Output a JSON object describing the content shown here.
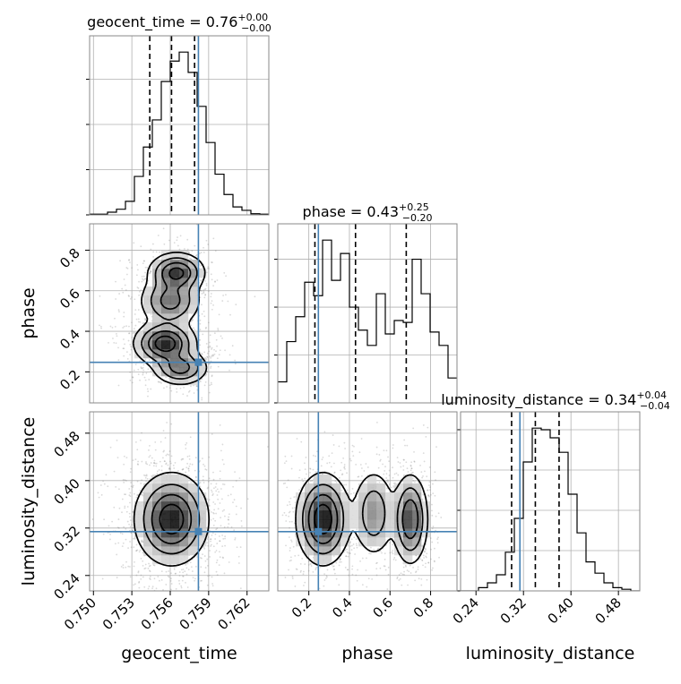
{
  "chart_data": {
    "type": "corner",
    "parameters": [
      "geocent_time",
      "phase",
      "luminosity_distance"
    ],
    "truth": {
      "geocent_time": 0.7582,
      "phase": 0.247,
      "luminosity_distance": 0.314
    },
    "truth_color": "#4682b4",
    "grid": true,
    "titles": {
      "geocent_time": {
        "prefix": "geocent_time = 0.76",
        "plus": "+0.00",
        "minus": "−0.00"
      },
      "phase": {
        "prefix": "phase = 0.43",
        "plus": "+0.25",
        "minus": "−0.20"
      },
      "luminosity_distance": {
        "prefix": "luminosity_distance = 0.34",
        "plus": "+0.04",
        "minus": "−0.04"
      }
    },
    "axis_labels": {
      "geocent_time": "geocent_time",
      "phase": "phase",
      "luminosity_distance": "luminosity_distance"
    },
    "ranges": {
      "geocent_time": [
        0.7497,
        0.7637
      ],
      "phase": [
        0.047,
        0.93
      ],
      "luminosity_distance": [
        0.214,
        0.516
      ]
    },
    "ticks": {
      "geocent_time": [
        "0.750",
        "0.753",
        "0.756",
        "0.759",
        "0.762"
      ],
      "phase": [
        "0.2",
        "0.4",
        "0.6",
        "0.8"
      ],
      "luminosity_distance": [
        "0.24",
        "0.32",
        "0.40",
        "0.48"
      ]
    },
    "quantiles": {
      "geocent_time": [
        0.7544,
        0.7561,
        0.7579
      ],
      "phase": [
        0.23,
        0.43,
        0.68
      ],
      "luminosity_distance": [
        0.3,
        0.34,
        0.38
      ]
    },
    "histograms": {
      "geocent_time": [
        0.3,
        0.3,
        1.2,
        2.5,
        6.0,
        17.0,
        30.0,
        42.0,
        59.0,
        68.0,
        72.0,
        63.0,
        48.0,
        32.0,
        18.0,
        9.0,
        3.5,
        2.0,
        0.5,
        0.3
      ],
      "phase": [
        11,
        32,
        45,
        63,
        56,
        85,
        64,
        78,
        50,
        38,
        30,
        57,
        36,
        43,
        42,
        75,
        57,
        37,
        30,
        13
      ],
      "luminosity_distance": [
        0,
        0,
        2,
        5,
        10,
        24,
        45,
        80,
        101,
        100,
        95,
        86,
        60,
        36,
        18,
        11,
        5,
        2,
        1,
        0
      ]
    },
    "hist_maxima": {
      "geocent_time": 72,
      "phase": 85,
      "luminosity_distance": 101
    }
  }
}
